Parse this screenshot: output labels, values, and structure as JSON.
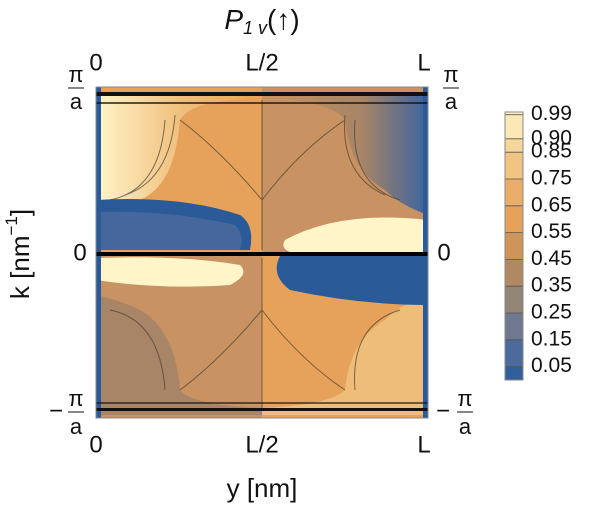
{
  "chart_data": {
    "type": "contour",
    "title": {
      "main": "P",
      "subscript": "1 v",
      "suffix": "(↑)"
    },
    "xlabel": "y [nm]",
    "ylabel": {
      "main": "k [nm",
      "superscript": "−1",
      "close": "]"
    },
    "xticks": [
      "0",
      "L/2",
      "L"
    ],
    "yticks": [
      {
        "sign": "−",
        "numerator": "π",
        "denominator": "a"
      },
      "0",
      {
        "numerator": "π",
        "denominator": "a"
      }
    ],
    "colorbar": {
      "zlim": [
        0,
        1
      ],
      "ticks": [
        0.99,
        {
          "value": 0.9,
          "label": "0.90"
        },
        0.85,
        0.75,
        0.65,
        0.55,
        0.45,
        0.35,
        0.25,
        0.15,
        0.05
      ],
      "colors": [
        "#2a5b98",
        "#5a709e",
        "#8e8379",
        "#b98a5e",
        "#e39e55",
        "#ebb06c",
        "#f4d394",
        "#fff5c9"
      ]
    }
  }
}
